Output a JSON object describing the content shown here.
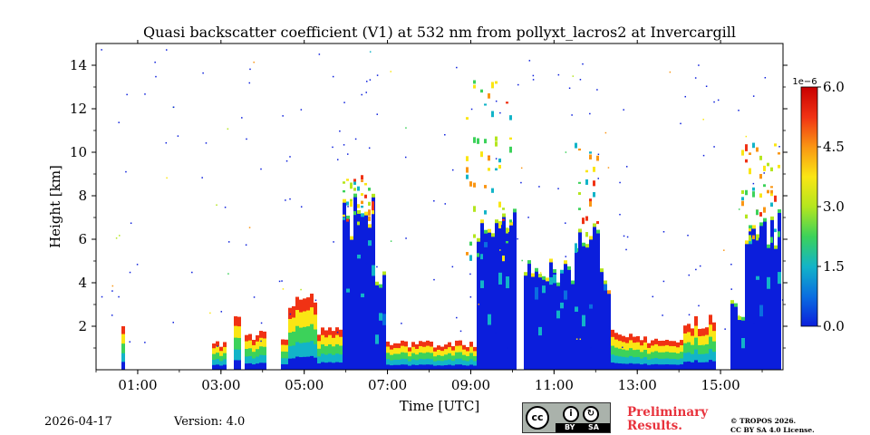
{
  "chart_data": {
    "type": "heatmap",
    "title": "Quasi backscatter coefficient (V1) at 532 nm from pollyxt_lacros2 at Invercargill",
    "xlabel": "Time [UTC]",
    "ylabel": "Height [km]",
    "x_range_hours": [
      0.0,
      16.5
    ],
    "y_range_km": [
      0.0,
      15.0
    ],
    "x_ticks": [
      {
        "value": 1,
        "label": "01:00"
      },
      {
        "value": 3,
        "label": "03:00"
      },
      {
        "value": 5,
        "label": "05:00"
      },
      {
        "value": 7,
        "label": "07:00"
      },
      {
        "value": 9,
        "label": "09:00"
      },
      {
        "value": 11,
        "label": "11:00"
      },
      {
        "value": 13,
        "label": "13:00"
      },
      {
        "value": 15,
        "label": "15:00"
      }
    ],
    "y_ticks": [
      {
        "value": 2,
        "label": "2"
      },
      {
        "value": 4,
        "label": "4"
      },
      {
        "value": 6,
        "label": "6"
      },
      {
        "value": 8,
        "label": "8"
      },
      {
        "value": 10,
        "label": "10"
      },
      {
        "value": 12,
        "label": "12"
      },
      {
        "value": 14,
        "label": "14"
      }
    ],
    "colorbar": {
      "range": [
        0.0,
        6.0
      ],
      "multiplier": "1e−6",
      "ticks": [
        {
          "value": 0.0,
          "label": "0.0"
        },
        {
          "value": 1.5,
          "label": "1.5"
        },
        {
          "value": 3.0,
          "label": "3.0"
        },
        {
          "value": 4.5,
          "label": "4.5"
        },
        {
          "value": 6.0,
          "label": "6.0"
        }
      ],
      "colormap": [
        "#0b1edc",
        "#0a6ee0",
        "#12b4c8",
        "#3cd25a",
        "#b4e61e",
        "#fae614",
        "#fa9614",
        "#f03214",
        "#c80000"
      ]
    },
    "profiles": [
      {
        "start": 0.6,
        "end": 0.7,
        "top": 1.8,
        "mode": "surface"
      },
      {
        "start": 2.8,
        "end": 3.1,
        "top": 1.2,
        "mode": "surface"
      },
      {
        "start": 3.3,
        "end": 3.5,
        "top": 2.3,
        "mode": "surface"
      },
      {
        "start": 3.6,
        "end": 4.1,
        "top": 1.6,
        "mode": "surface"
      },
      {
        "start": 4.4,
        "end": 4.6,
        "top": 1.5,
        "mode": "surface"
      },
      {
        "start": 4.6,
        "end": 5.3,
        "top": 3.3,
        "mode": "surface"
      },
      {
        "start": 5.3,
        "end": 5.9,
        "top": 1.7,
        "mode": "surface"
      },
      {
        "start": 5.9,
        "end": 6.7,
        "top": 7.0,
        "mode": "column"
      },
      {
        "start": 6.7,
        "end": 7.0,
        "top": 3.9,
        "mode": "column"
      },
      {
        "start": 7.0,
        "end": 9.1,
        "top": 1.2,
        "mode": "surface"
      },
      {
        "start": 9.1,
        "end": 10.1,
        "top": 6.5,
        "mode": "column"
      },
      {
        "start": 10.25,
        "end": 11.1,
        "top": 4.8,
        "mode": "column"
      },
      {
        "start": 11.1,
        "end": 11.5,
        "top": 4.3,
        "mode": "column"
      },
      {
        "start": 11.5,
        "end": 12.1,
        "top": 6.3,
        "mode": "column"
      },
      {
        "start": 12.1,
        "end": 12.4,
        "top": 4.0,
        "mode": "column"
      },
      {
        "start": 12.4,
        "end": 13.2,
        "top": 1.6,
        "mode": "surface"
      },
      {
        "start": 13.2,
        "end": 14.1,
        "top": 1.4,
        "mode": "surface"
      },
      {
        "start": 14.1,
        "end": 14.9,
        "top": 2.2,
        "mode": "surface"
      },
      {
        "start": 15.2,
        "end": 15.6,
        "top": 2.7,
        "mode": "column"
      },
      {
        "start": 15.6,
        "end": 16.5,
        "top": 6.4,
        "mode": "column"
      }
    ],
    "aerosol_plumes": [
      {
        "start": 5.9,
        "end": 6.7,
        "bottom": 6.8,
        "top": 9.0
      },
      {
        "start": 8.9,
        "end": 10.0,
        "bottom": 5.0,
        "top": 13.5
      },
      {
        "start": 11.5,
        "end": 12.1,
        "bottom": 5.5,
        "top": 11.0
      },
      {
        "start": 15.5,
        "end": 16.5,
        "bottom": 6.0,
        "top": 10.5
      }
    ],
    "noise_density": 0.5
  },
  "footer": {
    "date": "2026-04-17",
    "version": "Version: 4.0",
    "preliminary_line1": "Preliminary",
    "preliminary_line2": "Results.",
    "tropos_line1": "© TROPOS 2026.",
    "tropos_line2": "CC BY SA 4.0 License.",
    "license_badge": {
      "cc": "cc",
      "by": "BY",
      "sa": "SA"
    }
  }
}
